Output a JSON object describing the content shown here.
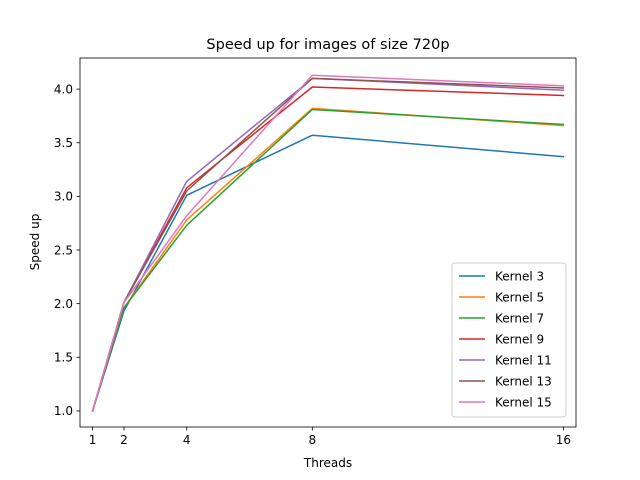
{
  "chart_data": {
    "type": "line",
    "title": "Speed up for images of size 720p",
    "xlabel": "Threads",
    "ylabel": "Speed up",
    "x": [
      1,
      2,
      4,
      8,
      16
    ],
    "x_ticks": [
      "1",
      "2",
      "4",
      "8",
      "16"
    ],
    "xlim": [
      0.6,
      16.4
    ],
    "ylim": [
      0.85,
      4.29
    ],
    "y_ticks": [
      "1.0",
      "1.5",
      "2.0",
      "2.5",
      "3.0",
      "3.5",
      "4.0"
    ],
    "grid": false,
    "legend_position": "lower-right",
    "series": [
      {
        "name": "Kernel 3",
        "color": "#1f77b4",
        "values": [
          1.0,
          1.93,
          3.01,
          3.57,
          3.37
        ]
      },
      {
        "name": "Kernel 5",
        "color": "#ff7f0e",
        "values": [
          1.0,
          1.96,
          2.78,
          3.82,
          3.66
        ]
      },
      {
        "name": "Kernel 7",
        "color": "#2ca02c",
        "values": [
          1.0,
          1.96,
          2.73,
          3.81,
          3.67
        ]
      },
      {
        "name": "Kernel 9",
        "color": "#d62728",
        "values": [
          1.0,
          2.01,
          3.08,
          4.02,
          3.94
        ]
      },
      {
        "name": "Kernel 11",
        "color": "#9467bd",
        "values": [
          1.0,
          2.01,
          3.14,
          4.1,
          3.99
        ]
      },
      {
        "name": "Kernel 13",
        "color": "#8c564b",
        "values": [
          1.0,
          2.01,
          3.05,
          4.1,
          4.01
        ]
      },
      {
        "name": "Kernel 15",
        "color": "#e377c2",
        "values": [
          1.0,
          2.01,
          2.82,
          4.13,
          4.03
        ]
      }
    ]
  }
}
